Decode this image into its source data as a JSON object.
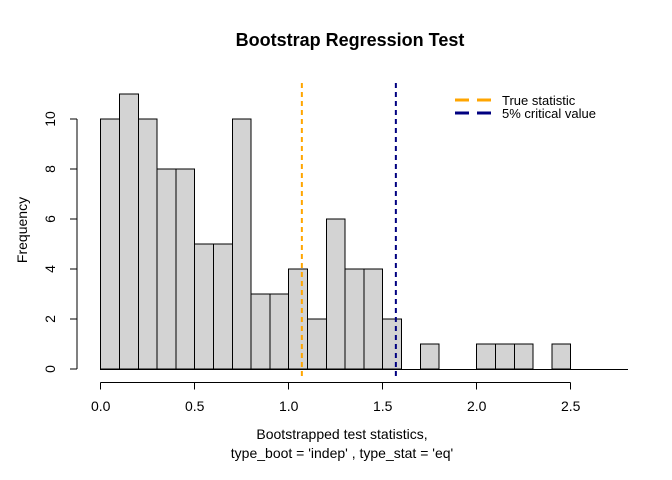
{
  "title": "Bootstrap Regression Test",
  "ylabel": "Frequency",
  "xlabel_line1": "Bootstrapped test statistics,",
  "xlabel_line2": "type_boot = 'indep' , type_stat = 'eq'",
  "legend": {
    "position": "topright",
    "items": [
      {
        "label": "True statistic",
        "color": "#FFA500",
        "line_style": "dashed"
      },
      {
        "label": "5% critical value",
        "color": "#000080",
        "line_style": "dashed"
      }
    ]
  },
  "chart_data": {
    "type": "bar",
    "subtype": "histogram",
    "title": "Bootstrap Regression Test",
    "xlabel": "Bootstrapped test statistics, type_boot = 'indep' , type_stat = 'eq'",
    "ylabel": "Frequency",
    "bin_start": 0.0,
    "bin_width": 0.1,
    "counts": [
      10,
      11,
      10,
      8,
      8,
      5,
      5,
      10,
      3,
      3,
      4,
      2,
      6,
      4,
      4,
      2,
      0,
      1,
      0,
      0,
      1,
      1,
      1,
      0,
      1
    ],
    "xlim": [
      0.0,
      2.5
    ],
    "ylim": [
      0,
      11
    ],
    "x_ticks": [
      0.0,
      0.5,
      1.0,
      1.5,
      2.0,
      2.5
    ],
    "x_tick_labels": [
      "0.0",
      "0.5",
      "1.0",
      "1.5",
      "2.0",
      "2.5"
    ],
    "y_ticks": [
      0,
      2,
      4,
      6,
      8,
      10
    ],
    "y_tick_labels": [
      "0",
      "2",
      "4",
      "6",
      "8",
      "10"
    ],
    "bar_fill": "#D3D3D3",
    "bar_border": "#000000",
    "axis_color": "#000000",
    "grid": false,
    "vlines": [
      {
        "value": 1.07,
        "color": "#FFA500",
        "style": "dashed",
        "label": "True statistic"
      },
      {
        "value": 1.57,
        "color": "#000080",
        "style": "dashed",
        "label": "5% critical value"
      }
    ],
    "legend_position": "topright"
  }
}
